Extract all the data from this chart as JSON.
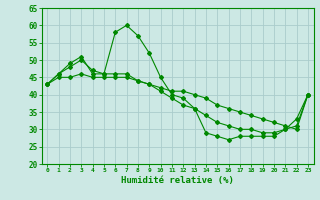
{
  "xlabel": "Humidité relative (%)",
  "bg_color": "#cce8e4",
  "grid_color": "#aacccc",
  "line_color": "#008800",
  "xlim": [
    -0.5,
    23.5
  ],
  "ylim": [
    20,
    65
  ],
  "yticks": [
    20,
    25,
    30,
    35,
    40,
    45,
    50,
    55,
    60,
    65
  ],
  "xticks": [
    0,
    1,
    2,
    3,
    4,
    5,
    6,
    7,
    8,
    9,
    10,
    11,
    12,
    13,
    14,
    15,
    16,
    17,
    18,
    19,
    20,
    21,
    22,
    23
  ],
  "series1_x": [
    0,
    1,
    2,
    3,
    4,
    5,
    6,
    7,
    8,
    9,
    10,
    11,
    12,
    13,
    14,
    15,
    16,
    17,
    18,
    19,
    20,
    21,
    22,
    23
  ],
  "series1_y": [
    43,
    46,
    49,
    51,
    46,
    46,
    58,
    60,
    57,
    52,
    45,
    40,
    39,
    36,
    29,
    28,
    27,
    28,
    28,
    28,
    28,
    30,
    33,
    40
  ],
  "series2_x": [
    0,
    1,
    2,
    3,
    4,
    5,
    6,
    7,
    8,
    9,
    10,
    11,
    12,
    13,
    14,
    15,
    16,
    17,
    18,
    19,
    20,
    21,
    22,
    23
  ],
  "series2_y": [
    43,
    46,
    48,
    50,
    47,
    46,
    46,
    46,
    44,
    43,
    42,
    41,
    41,
    40,
    39,
    37,
    36,
    35,
    34,
    33,
    32,
    31,
    30,
    40
  ],
  "series3_x": [
    0,
    1,
    2,
    3,
    4,
    5,
    6,
    7,
    8,
    9,
    10,
    11,
    12,
    13,
    14,
    15,
    16,
    17,
    18,
    19,
    20,
    21,
    22,
    23
  ],
  "series3_y": [
    43,
    45,
    45,
    46,
    45,
    45,
    45,
    45,
    44,
    43,
    41,
    39,
    37,
    36,
    34,
    32,
    31,
    30,
    30,
    29,
    29,
    30,
    31,
    40
  ]
}
